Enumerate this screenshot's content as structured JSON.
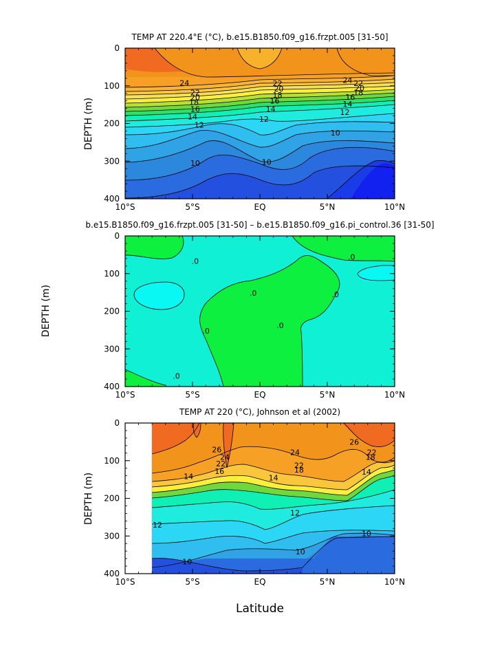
{
  "figure": {
    "xlabel": "Latitude"
  },
  "chart_data": [
    {
      "type": "heatmap",
      "title": "TEMP AT 220.4°E (°C), b.e15.B1850.f09_g16.frzpt.005 [31-50]",
      "xlabel": "",
      "ylabel": "DEPTH (m)",
      "x_range": [
        -10,
        10
      ],
      "ylim": [
        400,
        0
      ],
      "x_tick_labels": [
        "10°S",
        "5°S",
        "EQ",
        "5°N",
        "10°N"
      ],
      "y_tick_labels": [
        "0",
        "100",
        "200",
        "300",
        "400"
      ],
      "contour_interval": 1,
      "contour_labels": [
        {
          "text": "24",
          "x": -5.6,
          "y": 92
        },
        {
          "text": "22",
          "x": -4.8,
          "y": 118
        },
        {
          "text": "20",
          "x": -4.8,
          "y": 131
        },
        {
          "text": "18",
          "x": -4.9,
          "y": 143
        },
        {
          "text": "16",
          "x": -4.8,
          "y": 162
        },
        {
          "text": "14",
          "x": -5.0,
          "y": 182
        },
        {
          "text": "12",
          "x": -4.5,
          "y": 204
        },
        {
          "text": "10",
          "x": -4.8,
          "y": 305
        },
        {
          "text": "22",
          "x": 1.3,
          "y": 93
        },
        {
          "text": "20",
          "x": 1.4,
          "y": 108
        },
        {
          "text": "18",
          "x": 1.3,
          "y": 124
        },
        {
          "text": "16",
          "x": 1.1,
          "y": 140
        },
        {
          "text": "14",
          "x": 0.8,
          "y": 162
        },
        {
          "text": "12",
          "x": 0.3,
          "y": 188
        },
        {
          "text": "10",
          "x": 0.5,
          "y": 302
        },
        {
          "text": "24",
          "x": 6.5,
          "y": 85
        },
        {
          "text": "22",
          "x": 7.3,
          "y": 93
        },
        {
          "text": "20",
          "x": 7.4,
          "y": 106
        },
        {
          "text": "18",
          "x": 7.3,
          "y": 118
        },
        {
          "text": "16",
          "x": 6.7,
          "y": 130
        },
        {
          "text": "14",
          "x": 6.5,
          "y": 148
        },
        {
          "text": "12",
          "x": 6.3,
          "y": 170
        },
        {
          "text": "10",
          "x": 5.6,
          "y": 225
        }
      ]
    },
    {
      "type": "heatmap",
      "title": "b.e15.B1850.f09_g16.frzpt.005 [31-50] – b.e15.B1850.f09_g16.pi_control.36 [31-50]",
      "xlabel": "",
      "ylabel": "DEPTH (m)",
      "x_range": [
        -10,
        10
      ],
      "ylim": [
        400,
        0
      ],
      "x_tick_labels": [
        "10°S",
        "5°S",
        "EQ",
        "5°N",
        "10°N"
      ],
      "y_tick_labels": [
        "0",
        "100",
        "200",
        "300",
        "400"
      ],
      "contour_labels": [
        {
          "text": ".0",
          "x": -4.8,
          "y": 67
        },
        {
          "text": ".0",
          "x": -0.5,
          "y": 152
        },
        {
          "text": ".0",
          "x": -4.0,
          "y": 252
        },
        {
          "text": ".0",
          "x": -6.2,
          "y": 372
        },
        {
          "text": ".0",
          "x": 1.5,
          "y": 237
        },
        {
          "text": ".0",
          "x": 5.6,
          "y": 155
        },
        {
          "text": ".0",
          "x": 6.8,
          "y": 56
        }
      ]
    },
    {
      "type": "heatmap",
      "title": "TEMP AT 220 (°C), Johnson et al (2002)",
      "xlabel": "Latitude",
      "ylabel": "DEPTH (m)",
      "x_range": [
        -10,
        10
      ],
      "ylim": [
        400,
        0
      ],
      "x_tick_labels": [
        "10°S",
        "5°S",
        "EQ",
        "5°N",
        "10°N"
      ],
      "y_tick_labels": [
        "0",
        "100",
        "200",
        "300",
        "400"
      ],
      "contour_labels": [
        {
          "text": "26",
          "x": -3.2,
          "y": 70
        },
        {
          "text": "24",
          "x": -2.6,
          "y": 90
        },
        {
          "text": "22",
          "x": -2.9,
          "y": 108
        },
        {
          "text": "16",
          "x": -3.0,
          "y": 128
        },
        {
          "text": "14",
          "x": -5.3,
          "y": 142
        },
        {
          "text": "24",
          "x": 2.6,
          "y": 78
        },
        {
          "text": "22",
          "x": 2.9,
          "y": 112
        },
        {
          "text": "18",
          "x": 2.9,
          "y": 124
        },
        {
          "text": "14",
          "x": 1.0,
          "y": 145
        },
        {
          "text": "26",
          "x": 7.0,
          "y": 50
        },
        {
          "text": "22",
          "x": 8.3,
          "y": 78
        },
        {
          "text": "18",
          "x": 8.2,
          "y": 90
        },
        {
          "text": "14",
          "x": 7.9,
          "y": 130
        },
        {
          "text": "12",
          "x": 2.6,
          "y": 238
        },
        {
          "text": "12",
          "x": -7.6,
          "y": 270
        },
        {
          "text": "10",
          "x": 7.9,
          "y": 293
        },
        {
          "text": "10",
          "x": -5.4,
          "y": 368
        },
        {
          "text": "10",
          "x": 3.0,
          "y": 342
        }
      ]
    }
  ]
}
